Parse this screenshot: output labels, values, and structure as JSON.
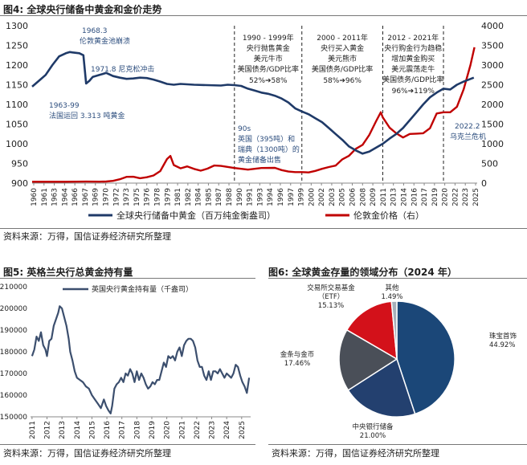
{
  "fig4": {
    "title": "图4: 全球央行储备中黄金和金价走势",
    "source": "资料来源：万得，国信证券经济研究所整理",
    "chart_data": {
      "type": "line",
      "x_tick_labels": [
        "1960",
        "1961",
        "1963",
        "1964",
        "1966",
        "1967",
        "1969",
        "1970",
        "1972",
        "1973",
        "1975",
        "1976",
        "1978",
        "1979",
        "1981",
        "1982",
        "1984",
        "1985",
        "1987",
        "1988",
        "1990",
        "1991",
        "1993",
        "1994",
        "1996",
        "1997",
        "1999",
        "2000",
        "2002",
        "2003",
        "2005",
        "2006",
        "2008",
        "2009",
        "2011",
        "2013",
        "2014",
        "2016",
        "2017",
        "2019",
        "2020",
        "2022",
        "2023",
        "2025"
      ],
      "y_left": {
        "min": 900,
        "max": 1300,
        "ticks": [
          900,
          950,
          1000,
          1050,
          1100,
          1150,
          1200,
          1250,
          1300
        ]
      },
      "y_right": {
        "min": 0,
        "max": 4000,
        "ticks": [
          0,
          500,
          1000,
          1500,
          2000,
          2500,
          3000,
          3500,
          4000
        ]
      },
      "vlines": [
        1990,
        2000,
        2012,
        2021
      ],
      "series": [
        {
          "name": "全球央行储备中黄金（百万纯金衡盎司）",
          "axis": "left",
          "color": "#1f3a68",
          "x": [
            1960,
            1961,
            1962,
            1963,
            1964,
            1965,
            1965.6,
            1966,
            1967,
            1967.6,
            1968,
            1968.5,
            1969,
            1970,
            1971,
            1972,
            1973,
            1974,
            1975,
            1976,
            1977,
            1978,
            1979,
            1980,
            1981,
            1982,
            1984,
            1986,
            1988,
            1989,
            1990,
            1991,
            1992,
            1993,
            1994,
            1995,
            1996,
            1997,
            1998,
            1999,
            2000,
            2001,
            2002,
            2003,
            2004,
            2005,
            2006,
            2007,
            2008,
            2009,
            2010,
            2011,
            2012,
            2013,
            2014,
            2015,
            2016,
            2017,
            2018,
            2019,
            2020,
            2021,
            2022,
            2023,
            2024,
            2025.5
          ],
          "y": [
            1145,
            1160,
            1175,
            1200,
            1222,
            1230,
            1233,
            1232,
            1230,
            1225,
            1153,
            1160,
            1170,
            1175,
            1180,
            1172,
            1168,
            1165,
            1166,
            1168,
            1167,
            1163,
            1158,
            1152,
            1150,
            1152,
            1150,
            1149,
            1148,
            1150,
            1149,
            1147,
            1140,
            1135,
            1130,
            1127,
            1122,
            1115,
            1105,
            1090,
            1082,
            1075,
            1065,
            1055,
            1040,
            1025,
            1010,
            993,
            983,
            975,
            980,
            990,
            1000,
            1013,
            1025,
            1040,
            1060,
            1080,
            1100,
            1118,
            1130,
            1140,
            1138,
            1150,
            1158,
            1168
          ]
        },
        {
          "name": "伦敦金价格（右）",
          "axis": "right",
          "color": "#c00000",
          "x": [
            1960,
            1965,
            1968,
            1970,
            1971,
            1972,
            1973,
            1974,
            1975,
            1976,
            1977,
            1978,
            1979,
            1980,
            1980.5,
            1981,
            1982,
            1983,
            1984,
            1985,
            1986,
            1987,
            1988,
            1990,
            1992,
            1994,
            1996,
            1997,
            1998,
            1999,
            2000,
            2001,
            2002,
            2003,
            2004,
            2005,
            2006,
            2007,
            2008,
            2009,
            2010,
            2011,
            2011.7,
            2012,
            2013,
            2014,
            2015,
            2016,
            2017,
            2018,
            2019,
            2020,
            2021,
            2022,
            2023,
            2024,
            2025,
            2025.6
          ],
          "y": [
            35,
            35,
            38,
            36,
            40,
            58,
            97,
            160,
            161,
            125,
            148,
            193,
            307,
            612,
            690,
            460,
            376,
            424,
            361,
            317,
            368,
            447,
            437,
            383,
            343,
            384,
            388,
            331,
            294,
            279,
            279,
            271,
            310,
            363,
            409,
            444,
            604,
            695,
            872,
            972,
            1224,
            1571,
            1800,
            1669,
            1411,
            1266,
            1160,
            1250,
            1257,
            1268,
            1393,
            1770,
            1799,
            1800,
            1940,
            2386,
            3000,
            3450
          ]
        }
      ],
      "annotations": [
        {
          "id": "a1968_1",
          "text": "1968.3"
        },
        {
          "id": "a1968_2",
          "text": "伦敦黄金池崩溃"
        },
        {
          "id": "a1971",
          "text": "1971.8 尼克松冲击"
        },
        {
          "id": "a1963_1",
          "text": "1963-99"
        },
        {
          "id": "a1963_2",
          "text": "法国运回 3.313 吨黄金"
        },
        {
          "id": "p1990_1",
          "text": "1990 - 1999年"
        },
        {
          "id": "p1990_2",
          "text": "央行抛售黄金"
        },
        {
          "id": "p1990_3",
          "text": "美元牛市"
        },
        {
          "id": "p1990_4",
          "text": "美国债务/GDP比率"
        },
        {
          "id": "p1990_5",
          "text": "52%➔58%"
        },
        {
          "id": "p2000_1",
          "text": "2000 - 2011年"
        },
        {
          "id": "p2000_2",
          "text": "央行买入黄金"
        },
        {
          "id": "p2000_3",
          "text": "美元熊市"
        },
        {
          "id": "p2000_4",
          "text": "美国债务/GDP比率"
        },
        {
          "id": "p2000_5",
          "text": "58%➔96%"
        },
        {
          "id": "p2012_1",
          "text": "2012 - 2021年"
        },
        {
          "id": "p2012_2",
          "text": "央行购金行为趋稳"
        },
        {
          "id": "p2012_3",
          "text": "增加黄金购买"
        },
        {
          "id": "p2012_4",
          "text": "美元震荡走牛"
        },
        {
          "id": "p2012_5",
          "text": "美国债务/GDP比率"
        },
        {
          "id": "p2012_6",
          "text": "96%➔119%"
        },
        {
          "id": "n90_1",
          "text": "90s"
        },
        {
          "id": "n90_2",
          "text": "英国（395吨）和"
        },
        {
          "id": "n90_3",
          "text": "瑞典（1300吨）的"
        },
        {
          "id": "n90_4",
          "text": "黄金储备出售"
        },
        {
          "id": "n2022_1",
          "text": "2022.2"
        },
        {
          "id": "n2022_2",
          "text": "乌克兰危机"
        }
      ]
    }
  },
  "fig5": {
    "title": "图5: 英格兰央行总黄金持有量",
    "source": "资料来源：万得，国信证券经济研究所整理",
    "chart_data": {
      "type": "line",
      "x_tick_labels": [
        "2011",
        "2012",
        "2013",
        "2014",
        "2015",
        "2016",
        "2017",
        "2018",
        "2019",
        "2020",
        "2021",
        "2022",
        "2023",
        "2024",
        "2025"
      ],
      "y": {
        "min": 150000,
        "max": 210000,
        "ticks": [
          150000,
          160000,
          170000,
          180000,
          190000,
          200000,
          210000
        ]
      },
      "series": [
        {
          "name": "英国央行黄金持有量（千盎司）",
          "color": "#3c4f6e",
          "x": [
            2011.0,
            2011.15,
            2011.3,
            2011.45,
            2011.6,
            2011.75,
            2011.9,
            2012.0,
            2012.15,
            2012.3,
            2012.45,
            2012.6,
            2012.75,
            2012.85,
            2013.0,
            2013.15,
            2013.3,
            2013.45,
            2013.55,
            2013.7,
            2013.85,
            2014.0,
            2014.2,
            2014.4,
            2014.6,
            2014.8,
            2015.0,
            2015.2,
            2015.4,
            2015.6,
            2015.8,
            2015.95,
            2016.1,
            2016.25,
            2016.35,
            2016.5,
            2016.65,
            2016.8,
            2016.95,
            2017.1,
            2017.25,
            2017.4,
            2017.55,
            2017.7,
            2017.85,
            2018.0,
            2018.15,
            2018.3,
            2018.45,
            2018.6,
            2018.75,
            2018.9,
            2019.05,
            2019.2,
            2019.35,
            2019.5,
            2019.65,
            2019.8,
            2019.95,
            2020.1,
            2020.25,
            2020.4,
            2020.55,
            2020.7,
            2020.85,
            2021.0,
            2021.15,
            2021.3,
            2021.45,
            2021.6,
            2021.75,
            2021.9,
            2022.05,
            2022.2,
            2022.35,
            2022.5,
            2022.65,
            2022.8,
            2022.95,
            2023.1,
            2023.25,
            2023.4,
            2023.55,
            2023.7,
            2023.85,
            2024.0,
            2024.15,
            2024.3,
            2024.45,
            2024.6,
            2024.75,
            2024.9,
            2025.05,
            2025.2,
            2025.35,
            2025.5
          ],
          "y": [
            178000,
            181000,
            187000,
            185000,
            189000,
            183000,
            181000,
            178000,
            185000,
            186000,
            192000,
            195000,
            198000,
            201000,
            200000,
            196000,
            192000,
            186000,
            180000,
            176000,
            171000,
            168000,
            167000,
            166000,
            164000,
            163000,
            160000,
            158000,
            156000,
            154000,
            158000,
            155000,
            153000,
            151500,
            155000,
            163000,
            165000,
            166000,
            168000,
            166000,
            170000,
            169000,
            172000,
            170000,
            166000,
            171000,
            167000,
            170000,
            168000,
            165000,
            163000,
            164000,
            166000,
            165000,
            167000,
            167000,
            171000,
            175000,
            173000,
            178000,
            177000,
            178000,
            176000,
            180000,
            182000,
            178000,
            183000,
            185000,
            186000,
            186000,
            185000,
            182000,
            176000,
            173000,
            173000,
            169000,
            167000,
            171000,
            167000,
            171000,
            171000,
            170000,
            172000,
            170000,
            168000,
            170000,
            169000,
            168000,
            170000,
            174000,
            173000,
            169000,
            166000,
            164000,
            161000,
            168000
          ]
        }
      ]
    }
  },
  "fig6": {
    "title": "图6: 全球黄金存量的领域分布（2024 年）",
    "source": "资料来源：万得，国信证券经济研究所整理",
    "chart_data": {
      "type": "pie",
      "slices": [
        {
          "label": "珠宝首饰",
          "value": 44.92,
          "value_label": "44.92%",
          "color": "#1b4778"
        },
        {
          "label": "中央银行储备",
          "value": 21.0,
          "value_label": "21.00%",
          "color": "#23406f"
        },
        {
          "label": "金条与金币",
          "value": 17.46,
          "value_label": "17.46%",
          "color": "#4a4f58"
        },
        {
          "label": "交易所交易基金（ETF）",
          "label_lines": [
            "交易所交易基金",
            "（ETF）"
          ],
          "value": 15.13,
          "value_label": "15.13%",
          "color": "#d3111a"
        },
        {
          "label": "其他",
          "value": 1.49,
          "value_label": "1.49%",
          "color": "#a7b0ba"
        }
      ]
    }
  }
}
